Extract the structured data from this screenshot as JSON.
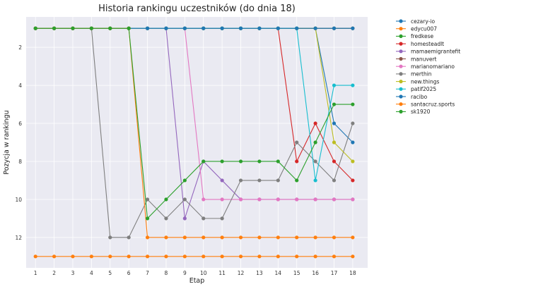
{
  "chart_data": {
    "type": "line",
    "title": "Historia rankingu uczestników (do dnia 18)",
    "xlabel": "Etap",
    "ylabel": "Pozycja w rankingu",
    "x": [
      1,
      2,
      3,
      4,
      5,
      6,
      7,
      8,
      9,
      10,
      11,
      12,
      13,
      14,
      15,
      16,
      17,
      18
    ],
    "xlim": [
      0.5,
      18.8
    ],
    "ylim": [
      13.6,
      0.4
    ],
    "y_inverted": true,
    "yticks": [
      2,
      4,
      6,
      8,
      10,
      12
    ],
    "grid": true,
    "legend_position": "outside-right",
    "series": [
      {
        "name": "cezary-io",
        "color": "#1f77b4",
        "values": [
          1,
          1,
          1,
          1,
          1,
          1,
          1,
          1,
          1,
          1,
          1,
          1,
          1,
          1,
          1,
          1,
          6,
          7
        ]
      },
      {
        "name": "edycu007",
        "color": "#ff7f0e",
        "values": [
          13,
          13,
          13,
          13,
          13,
          13,
          13,
          13,
          13,
          13,
          13,
          13,
          13,
          13,
          13,
          13,
          13,
          13
        ]
      },
      {
        "name": "fredkese",
        "color": "#2ca02c",
        "values": [
          1,
          1,
          1,
          1,
          1,
          1,
          1,
          1,
          1,
          1,
          1,
          1,
          1,
          1,
          1,
          1,
          1,
          1
        ]
      },
      {
        "name": "homesteadlt",
        "color": "#d62728",
        "values": [
          1,
          1,
          1,
          1,
          1,
          1,
          1,
          1,
          1,
          1,
          1,
          1,
          1,
          1,
          8,
          6,
          8,
          9
        ]
      },
      {
        "name": "mamaemigrantefit",
        "color": "#9467bd",
        "values": [
          1,
          1,
          1,
          1,
          1,
          1,
          1,
          1,
          11,
          8,
          9,
          10,
          10,
          10,
          10,
          10,
          10,
          10
        ]
      },
      {
        "name": "manuvert",
        "color": "#8c564b",
        "values": [
          1,
          1,
          1,
          1,
          1,
          1,
          1,
          1,
          1,
          1,
          1,
          1,
          1,
          1,
          1,
          1,
          1,
          1
        ]
      },
      {
        "name": "marianomariano",
        "color": "#e377c2",
        "values": [
          1,
          1,
          1,
          1,
          1,
          1,
          1,
          1,
          1,
          10,
          10,
          10,
          10,
          10,
          10,
          10,
          10,
          10
        ]
      },
      {
        "name": "merthin",
        "color": "#7f7f7f",
        "values": [
          1,
          1,
          1,
          1,
          12,
          12,
          10,
          11,
          10,
          11,
          11,
          9,
          9,
          9,
          7,
          8,
          9,
          6
        ]
      },
      {
        "name": "new.things",
        "color": "#bcbd22",
        "values": [
          1,
          1,
          1,
          1,
          1,
          1,
          1,
          1,
          1,
          1,
          1,
          1,
          1,
          1,
          1,
          1,
          7,
          8
        ]
      },
      {
        "name": "patif2025",
        "color": "#17becf",
        "values": [
          1,
          1,
          1,
          1,
          1,
          1,
          1,
          1,
          1,
          1,
          1,
          1,
          1,
          1,
          1,
          9,
          4,
          4
        ]
      },
      {
        "name": "racibo",
        "color": "#1f77b4",
        "values": [
          1,
          1,
          1,
          1,
          1,
          1,
          1,
          1,
          1,
          1,
          1,
          1,
          1,
          1,
          1,
          1,
          1,
          1
        ]
      },
      {
        "name": "santacruz.sports",
        "color": "#ff7f0e",
        "values": [
          1,
          1,
          1,
          1,
          1,
          1,
          12,
          12,
          12,
          12,
          12,
          12,
          12,
          12,
          12,
          12,
          12,
          12
        ]
      },
      {
        "name": "sk1920",
        "color": "#2ca02c",
        "values": [
          1,
          1,
          1,
          1,
          1,
          1,
          11,
          10,
          9,
          8,
          8,
          8,
          8,
          8,
          9,
          7,
          5,
          5
        ]
      }
    ]
  }
}
